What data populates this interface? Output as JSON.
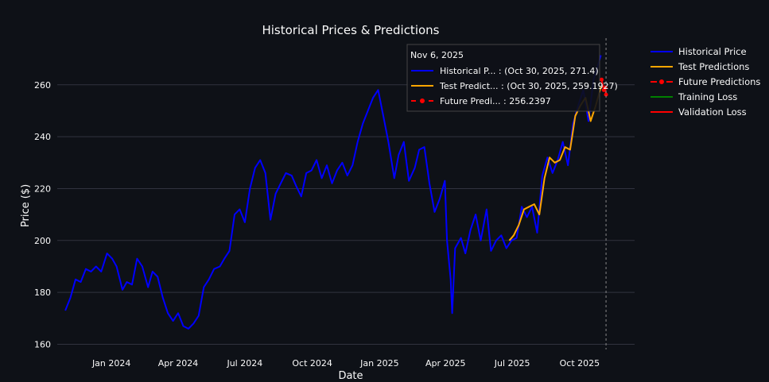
{
  "chart_data": {
    "type": "line",
    "title": "Historical Prices & Predictions",
    "xlabel": "Date",
    "ylabel": "Price ($)",
    "xlim": [
      "2023-10-19",
      "2025-12-15"
    ],
    "ylim": [
      158,
      278
    ],
    "grid": true,
    "legend_position": "right",
    "x_ticks": [
      {
        "date": "2024-01-01",
        "label": "Jan 2024"
      },
      {
        "date": "2024-04-01",
        "label": "Apr 2024"
      },
      {
        "date": "2024-07-01",
        "label": "Jul 2024"
      },
      {
        "date": "2024-10-01",
        "label": "Oct 2024"
      },
      {
        "date": "2025-01-01",
        "label": "Jan 2025"
      },
      {
        "date": "2025-04-01",
        "label": "Apr 2025"
      },
      {
        "date": "2025-07-01",
        "label": "Jul 2025"
      },
      {
        "date": "2025-10-01",
        "label": "Oct 2025"
      }
    ],
    "y_ticks": [
      160,
      180,
      200,
      220,
      240,
      260
    ],
    "series": [
      {
        "name": "Historical Price",
        "color": "#0000ff",
        "mode": "line",
        "points": [
          [
            "2023-10-30",
            173
          ],
          [
            "2023-11-06",
            178
          ],
          [
            "2023-11-13",
            185
          ],
          [
            "2023-11-20",
            184
          ],
          [
            "2023-11-27",
            189
          ],
          [
            "2023-12-04",
            188
          ],
          [
            "2023-12-11",
            190
          ],
          [
            "2023-12-18",
            188
          ],
          [
            "2023-12-26",
            195
          ],
          [
            "2024-01-02",
            193
          ],
          [
            "2024-01-08",
            190
          ],
          [
            "2024-01-16",
            181
          ],
          [
            "2024-01-22",
            184
          ],
          [
            "2024-01-29",
            183
          ],
          [
            "2024-02-05",
            193
          ],
          [
            "2024-02-12",
            190
          ],
          [
            "2024-02-20",
            182
          ],
          [
            "2024-02-26",
            188
          ],
          [
            "2024-03-04",
            186
          ],
          [
            "2024-03-11",
            178
          ],
          [
            "2024-03-18",
            172
          ],
          [
            "2024-03-25",
            169
          ],
          [
            "2024-04-01",
            172
          ],
          [
            "2024-04-08",
            167
          ],
          [
            "2024-04-15",
            166
          ],
          [
            "2024-04-22",
            168
          ],
          [
            "2024-04-29",
            171
          ],
          [
            "2024-05-06",
            182
          ],
          [
            "2024-05-13",
            185
          ],
          [
            "2024-05-20",
            189
          ],
          [
            "2024-05-28",
            190
          ],
          [
            "2024-06-03",
            193
          ],
          [
            "2024-06-10",
            196
          ],
          [
            "2024-06-17",
            210
          ],
          [
            "2024-06-24",
            212
          ],
          [
            "2024-07-01",
            207
          ],
          [
            "2024-07-08",
            220
          ],
          [
            "2024-07-15",
            228
          ],
          [
            "2024-07-22",
            231
          ],
          [
            "2024-07-29",
            226
          ],
          [
            "2024-08-05",
            208
          ],
          [
            "2024-08-12",
            218
          ],
          [
            "2024-08-19",
            222
          ],
          [
            "2024-08-26",
            226
          ],
          [
            "2024-09-03",
            225
          ],
          [
            "2024-09-09",
            221
          ],
          [
            "2024-09-16",
            217
          ],
          [
            "2024-09-23",
            226
          ],
          [
            "2024-09-30",
            227
          ],
          [
            "2024-10-07",
            231
          ],
          [
            "2024-10-14",
            224
          ],
          [
            "2024-10-21",
            229
          ],
          [
            "2024-10-28",
            222
          ],
          [
            "2024-11-04",
            227
          ],
          [
            "2024-11-11",
            230
          ],
          [
            "2024-11-18",
            225
          ],
          [
            "2024-11-25",
            229
          ],
          [
            "2024-12-02",
            238
          ],
          [
            "2024-12-09",
            245
          ],
          [
            "2024-12-16",
            250
          ],
          [
            "2024-12-23",
            255
          ],
          [
            "2024-12-30",
            258
          ],
          [
            "2025-01-06",
            248
          ],
          [
            "2025-01-13",
            238
          ],
          [
            "2025-01-21",
            224
          ],
          [
            "2025-01-27",
            233
          ],
          [
            "2025-02-03",
            238
          ],
          [
            "2025-02-10",
            223
          ],
          [
            "2025-02-18",
            228
          ],
          [
            "2025-02-24",
            235
          ],
          [
            "2025-03-03",
            236
          ],
          [
            "2025-03-10",
            222
          ],
          [
            "2025-03-17",
            211
          ],
          [
            "2025-03-24",
            216
          ],
          [
            "2025-03-31",
            223
          ],
          [
            "2025-04-03",
            200
          ],
          [
            "2025-04-08",
            185
          ],
          [
            "2025-04-10",
            172
          ],
          [
            "2025-04-14",
            197
          ],
          [
            "2025-04-22",
            201
          ],
          [
            "2025-04-28",
            195
          ],
          [
            "2025-05-05",
            204
          ],
          [
            "2025-05-12",
            210
          ],
          [
            "2025-05-19",
            200
          ],
          [
            "2025-05-27",
            212
          ],
          [
            "2025-06-02",
            196
          ],
          [
            "2025-06-09",
            200
          ],
          [
            "2025-06-16",
            202
          ],
          [
            "2025-06-23",
            197
          ],
          [
            "2025-06-30",
            200
          ],
          [
            "2025-07-07",
            201
          ],
          [
            "2025-07-14",
            213
          ],
          [
            "2025-07-21",
            209
          ],
          [
            "2025-07-28",
            213
          ],
          [
            "2025-08-04",
            203
          ],
          [
            "2025-08-11",
            225
          ],
          [
            "2025-08-18",
            232
          ],
          [
            "2025-08-25",
            226
          ],
          [
            "2025-09-01",
            231
          ],
          [
            "2025-09-08",
            238
          ],
          [
            "2025-09-15",
            229
          ],
          [
            "2025-09-22",
            245
          ],
          [
            "2025-09-29",
            252
          ],
          [
            "2025-10-06",
            258
          ],
          [
            "2025-10-13",
            246
          ],
          [
            "2025-10-20",
            262
          ],
          [
            "2025-10-30",
            271.4
          ]
        ]
      },
      {
        "name": "Test Predictions",
        "color": "#ffa500",
        "mode": "line",
        "points": [
          [
            "2025-06-27",
            200
          ],
          [
            "2025-07-03",
            202
          ],
          [
            "2025-07-10",
            206
          ],
          [
            "2025-07-17",
            212
          ],
          [
            "2025-07-24",
            213
          ],
          [
            "2025-07-31",
            214
          ],
          [
            "2025-08-07",
            210
          ],
          [
            "2025-08-14",
            224
          ],
          [
            "2025-08-21",
            232
          ],
          [
            "2025-08-28",
            230
          ],
          [
            "2025-09-04",
            231
          ],
          [
            "2025-09-11",
            236
          ],
          [
            "2025-09-18",
            235
          ],
          [
            "2025-09-25",
            248
          ],
          [
            "2025-10-02",
            252
          ],
          [
            "2025-10-09",
            255
          ],
          [
            "2025-10-16",
            246
          ],
          [
            "2025-10-23",
            252
          ],
          [
            "2025-10-30",
            259.1927
          ]
        ]
      },
      {
        "name": "Future Predictions",
        "color": "#ff0000",
        "mode": "lines+markers",
        "points": [
          [
            "2025-10-31",
            262
          ],
          [
            "2025-11-03",
            258
          ],
          [
            "2025-11-05",
            259
          ],
          [
            "2025-11-06",
            256.2397
          ]
        ]
      },
      {
        "name": "Training Loss",
        "color": "#008000",
        "mode": "line",
        "points": []
      },
      {
        "name": "Validation Loss",
        "color": "#ff0000",
        "mode": "line",
        "points": []
      }
    ],
    "hover": {
      "date": "2025-11-06",
      "title": "Nov 6, 2025",
      "rows": [
        {
          "label": "Historical P... : (Oct 30, 2025, 271.4)",
          "color": "#0000ff",
          "marker": false
        },
        {
          "label": "Test Predict... : (Oct 30, 2025, 259.1927)",
          "color": "#ffa500",
          "marker": false
        },
        {
          "label": "Future Predi... : 256.2397",
          "color": "#ff0000",
          "marker": true
        }
      ]
    }
  }
}
